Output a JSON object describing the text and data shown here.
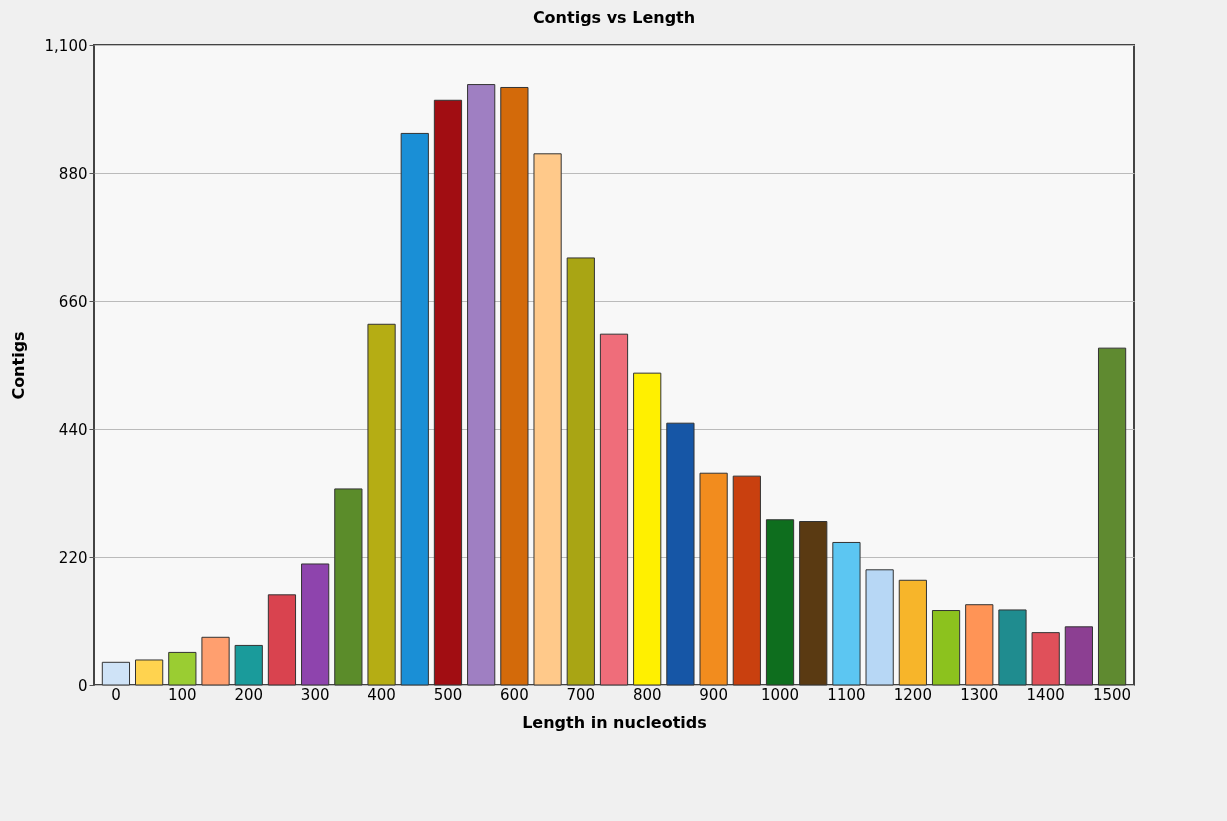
{
  "chart_data": {
    "type": "bar",
    "title": "Contigs vs Length",
    "xlabel": "Length in nucleotids",
    "ylabel": "Contigs",
    "categories": [
      "0",
      null,
      "100",
      null,
      "200",
      null,
      "300",
      null,
      "400",
      null,
      "500",
      null,
      "600",
      null,
      "700",
      null,
      "800",
      null,
      "900",
      null,
      "1000",
      null,
      "1100",
      null,
      "1200",
      null,
      "1300",
      null,
      "1400",
      null,
      "1500"
    ],
    "values": [
      39,
      43,
      56,
      82,
      68,
      155,
      208,
      337,
      620,
      948,
      1005,
      1032,
      1027,
      913,
      734,
      603,
      536,
      450,
      364,
      359,
      284,
      281,
      245,
      198,
      180,
      128,
      138,
      129,
      90,
      100,
      579
    ],
    "colors": [
      "#cfe3f7",
      "#ffd34f",
      "#9acd32",
      "#ff9f6f",
      "#1a9b9b",
      "#d9434f",
      "#8e44ad",
      "#5b8c2a",
      "#b5ad14",
      "#1a8fd6",
      "#a10d12",
      "#9f7fc2",
      "#d36a0a",
      "#ffc98a",
      "#a9a514",
      "#ef6d7a",
      "#fff000",
      "#1656a6",
      "#f28c1e",
      "#c9400f",
      "#0e6e1e",
      "#5a3a12",
      "#5cc6f2",
      "#b7d7f5",
      "#f7b52a",
      "#8cc21e",
      "#ff9456",
      "#1f8c8f",
      "#e0505a",
      "#8c3f92",
      "#5f8a30"
    ],
    "ylim": [
      0,
      1100
    ],
    "yticks": [
      0,
      220,
      440,
      660,
      880,
      {
        "value": 1100,
        "label": "1,100"
      }
    ],
    "grid": "y"
  }
}
